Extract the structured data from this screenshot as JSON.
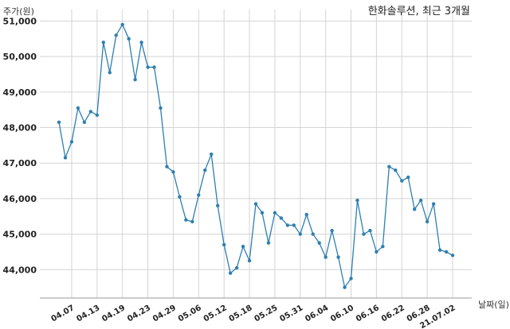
{
  "chart_data": {
    "type": "line",
    "title": "한화솔루션, 최근 3개월",
    "ylabel": "주가(원)",
    "xlabel": "날짜(일)",
    "ylim": [
      43200,
      51100
    ],
    "y_ticks": [
      44000,
      45000,
      46000,
      47000,
      48000,
      49000,
      50000,
      51000
    ],
    "y_tick_labels": [
      "44,000",
      "45,000",
      "46,000",
      "47,000",
      "48,000",
      "49,000",
      "50,000",
      "51,000"
    ],
    "x_tick_labels": [
      "04.07",
      "04.13",
      "04.19",
      "04.23",
      "04.29",
      "05.06",
      "05.12",
      "05.18",
      "05.25",
      "05.31",
      "06.04",
      "06.10",
      "06.16",
      "06.22",
      "06.28",
      "21.07.02"
    ],
    "x_tick_indices": [
      2,
      6,
      10,
      14,
      18,
      22,
      26,
      30,
      34,
      38,
      42,
      46,
      50,
      54,
      58,
      62
    ],
    "grid": true,
    "series": [
      {
        "color": "#2e7fb0",
        "values": [
          48150,
          47150,
          47600,
          48550,
          48150,
          48450,
          48350,
          50400,
          49550,
          50600,
          50900,
          50500,
          49350,
          50400,
          49700,
          49700,
          48550,
          46900,
          46750,
          46050,
          45400,
          45350,
          46100,
          46800,
          47250,
          45800,
          44700,
          43900,
          44050,
          44650,
          44250,
          45850,
          45600,
          44750,
          45600,
          45450,
          45250,
          45250,
          45000,
          45550,
          45000,
          44750,
          44350,
          45100,
          44350,
          43500,
          43750,
          45950,
          45000,
          45100,
          44500,
          44650,
          46900,
          46800,
          46500,
          46600,
          45700,
          45950,
          45350,
          45850,
          44550,
          44500,
          44400
        ]
      }
    ]
  }
}
